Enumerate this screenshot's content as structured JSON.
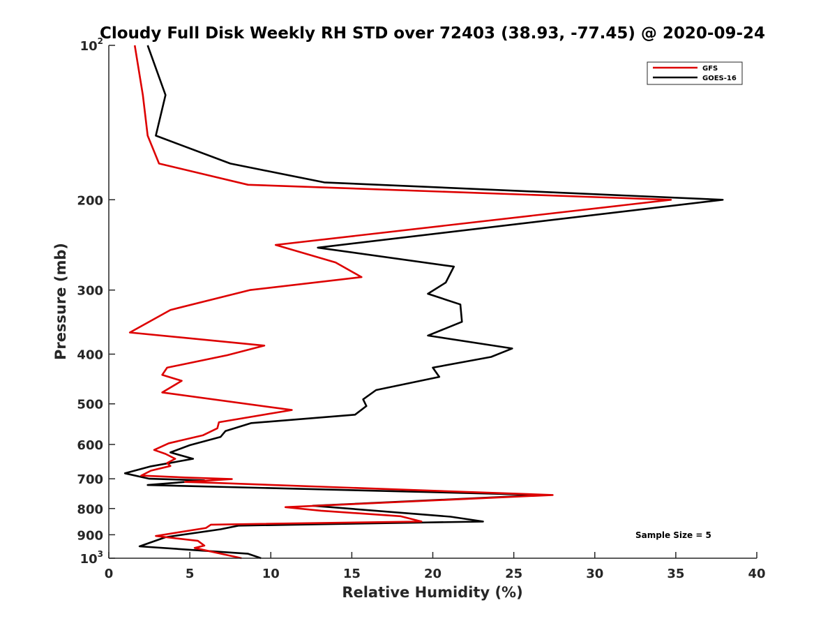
{
  "chart_data": {
    "type": "line",
    "title": "Cloudy Full Disk Weekly RH STD over 72403 (38.93, -77.45) @ 2020-09-24",
    "xlabel": "Relative Humidity (%)",
    "ylabel": "Pressure (mb)",
    "xlim": [
      0,
      40
    ],
    "ylim": [
      100,
      1000
    ],
    "y_scale": "log",
    "y_reversed": true,
    "grid": false,
    "legend_position": "top-right",
    "x_ticks": [
      0,
      5,
      10,
      15,
      20,
      25,
      30,
      35,
      40
    ],
    "y_ticks": [
      {
        "value": 100,
        "base": "10",
        "exp": "2"
      },
      {
        "value": 200,
        "label": "200"
      },
      {
        "value": 300,
        "label": "300"
      },
      {
        "value": 400,
        "label": "400"
      },
      {
        "value": 500,
        "label": "500"
      },
      {
        "value": 600,
        "label": "600"
      },
      {
        "value": 700,
        "label": "700"
      },
      {
        "value": 800,
        "label": "800"
      },
      {
        "value": 900,
        "label": "900"
      },
      {
        "value": 1000,
        "base": "10",
        "exp": "3"
      }
    ],
    "annotation": "Sample Size = 5",
    "series": [
      {
        "name": "GFS",
        "color": "#dd0000",
        "points": [
          [
            1.6,
            100
          ],
          [
            2.1,
            125
          ],
          [
            2.4,
            150
          ],
          [
            3.1,
            170
          ],
          [
            8.6,
            187
          ],
          [
            34.7,
            200
          ],
          [
            10.3,
            245
          ],
          [
            14.0,
            265
          ],
          [
            15.6,
            283
          ],
          [
            8.7,
            300
          ],
          [
            3.8,
            328
          ],
          [
            1.3,
            363
          ],
          [
            9.6,
            385
          ],
          [
            7.3,
            402
          ],
          [
            3.6,
            425
          ],
          [
            3.3,
            439
          ],
          [
            4.5,
            451
          ],
          [
            3.3,
            475
          ],
          [
            11.3,
            514
          ],
          [
            6.8,
            543
          ],
          [
            6.7,
            558
          ],
          [
            5.8,
            576
          ],
          [
            3.7,
            597
          ],
          [
            2.8,
            615
          ],
          [
            3.5,
            626
          ],
          [
            4.1,
            640
          ],
          [
            3.6,
            652
          ],
          [
            3.8,
            661
          ],
          [
            2.6,
            675
          ],
          [
            2.0,
            690
          ],
          [
            4.7,
            696
          ],
          [
            7.6,
            701
          ],
          [
            4.7,
            710
          ],
          [
            6.0,
            712
          ],
          [
            27.4,
            753
          ],
          [
            10.9,
            795
          ],
          [
            13.1,
            808
          ],
          [
            18.0,
            828
          ],
          [
            19.3,
            848
          ],
          [
            6.3,
            860
          ],
          [
            6.0,
            873
          ],
          [
            2.9,
            905
          ],
          [
            5.5,
            925
          ],
          [
            5.9,
            945
          ],
          [
            5.3,
            955
          ],
          [
            8.2,
            1000
          ]
        ]
      },
      {
        "name": "GOES-16",
        "color": "#000000",
        "points": [
          [
            2.4,
            100
          ],
          [
            3.5,
            125
          ],
          [
            2.9,
            150
          ],
          [
            7.5,
            170
          ],
          [
            13.3,
            185
          ],
          [
            37.9,
            200
          ],
          [
            12.9,
            248
          ],
          [
            21.3,
            270
          ],
          [
            20.8,
            290
          ],
          [
            19.7,
            305
          ],
          [
            21.7,
            320
          ],
          [
            21.8,
            346
          ],
          [
            19.7,
            368
          ],
          [
            24.9,
            390
          ],
          [
            23.6,
            405
          ],
          [
            20.0,
            425
          ],
          [
            20.4,
            443
          ],
          [
            16.5,
            470
          ],
          [
            15.7,
            490
          ],
          [
            15.9,
            505
          ],
          [
            15.2,
            525
          ],
          [
            8.8,
            545
          ],
          [
            7.2,
            565
          ],
          [
            6.9,
            580
          ],
          [
            5.0,
            602
          ],
          [
            3.8,
            622
          ],
          [
            5.2,
            640
          ],
          [
            2.6,
            662
          ],
          [
            1.0,
            683
          ],
          [
            2.5,
            700
          ],
          [
            5.9,
            705
          ],
          [
            2.4,
            720
          ],
          [
            26.9,
            753
          ],
          [
            12.6,
            790
          ],
          [
            21.1,
            830
          ],
          [
            23.1,
            848
          ],
          [
            8.0,
            864
          ],
          [
            6.9,
            878
          ],
          [
            3.5,
            910
          ],
          [
            1.9,
            948
          ],
          [
            8.6,
            980
          ],
          [
            9.4,
            1000
          ]
        ]
      }
    ]
  }
}
